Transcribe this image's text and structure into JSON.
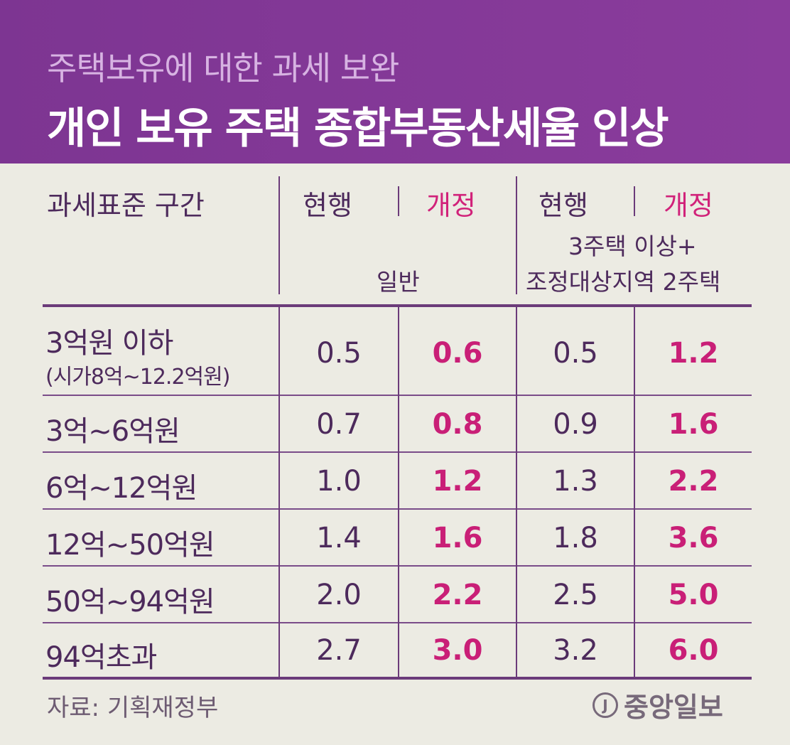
{
  "header": {
    "subtitle": "주택보유에 대한 과세 보완",
    "title": "개인 보유 주택 종합부동산세율 인상"
  },
  "table": {
    "col_header": "과세표준 구간",
    "current_label": "현행",
    "revised_label": "개정",
    "group1_label": "일반",
    "group2_label_line1": "3주택 이상+",
    "group2_label_line2": "조정대상지역 2주택",
    "rows": [
      {
        "label": "3억원 이하",
        "sub": "(시가8억~12.2억원)",
        "g1_cur": "0.5",
        "g1_rev": "0.6",
        "g2_cur": "0.5",
        "g2_rev": "1.2"
      },
      {
        "label": "3억~6억원",
        "sub": "",
        "g1_cur": "0.7",
        "g1_rev": "0.8",
        "g2_cur": "0.9",
        "g2_rev": "1.6"
      },
      {
        "label": "6억~12억원",
        "sub": "",
        "g1_cur": "1.0",
        "g1_rev": "1.2",
        "g2_cur": "1.3",
        "g2_rev": "2.2"
      },
      {
        "label": "12억~50억원",
        "sub": "",
        "g1_cur": "1.4",
        "g1_rev": "1.6",
        "g2_cur": "1.8",
        "g2_rev": "3.6"
      },
      {
        "label": "50억~94억원",
        "sub": "",
        "g1_cur": "2.0",
        "g1_rev": "2.2",
        "g2_cur": "2.5",
        "g2_rev": "5.0"
      },
      {
        "label": "94억초과",
        "sub": "",
        "g1_cur": "2.7",
        "g1_rev": "3.0",
        "g2_cur": "3.2",
        "g2_rev": "6.0"
      }
    ]
  },
  "chart_data": {
    "type": "table",
    "title": "개인 보유 주택 종합부동산세율 인상",
    "subtitle": "주택보유에 대한 과세 보완",
    "categories": [
      "3억원 이하",
      "3억~6억원",
      "6억~12억원",
      "12억~50억원",
      "50억~94억원",
      "94억초과"
    ],
    "series": [
      {
        "name": "일반 현행",
        "values": [
          0.5,
          0.7,
          1.0,
          1.4,
          2.0,
          2.7
        ]
      },
      {
        "name": "일반 개정",
        "values": [
          0.6,
          0.8,
          1.2,
          1.6,
          2.2,
          3.0
        ]
      },
      {
        "name": "3주택 이상+조정대상지역 2주택 현행",
        "values": [
          0.5,
          0.9,
          1.3,
          1.8,
          2.5,
          3.2
        ]
      },
      {
        "name": "3주택 이상+조정대상지역 2주택 개정",
        "values": [
          1.2,
          1.6,
          2.2,
          3.6,
          5.0,
          6.0
        ]
      }
    ]
  },
  "footer": {
    "source": "자료: 기획재정부",
    "logo_mark": "J",
    "logo_text": "중앙일보"
  },
  "colors": {
    "header_bg": "#7d3592",
    "accent": "#c91f77",
    "text": "#4d2a5c",
    "background": "#ecebe3"
  }
}
